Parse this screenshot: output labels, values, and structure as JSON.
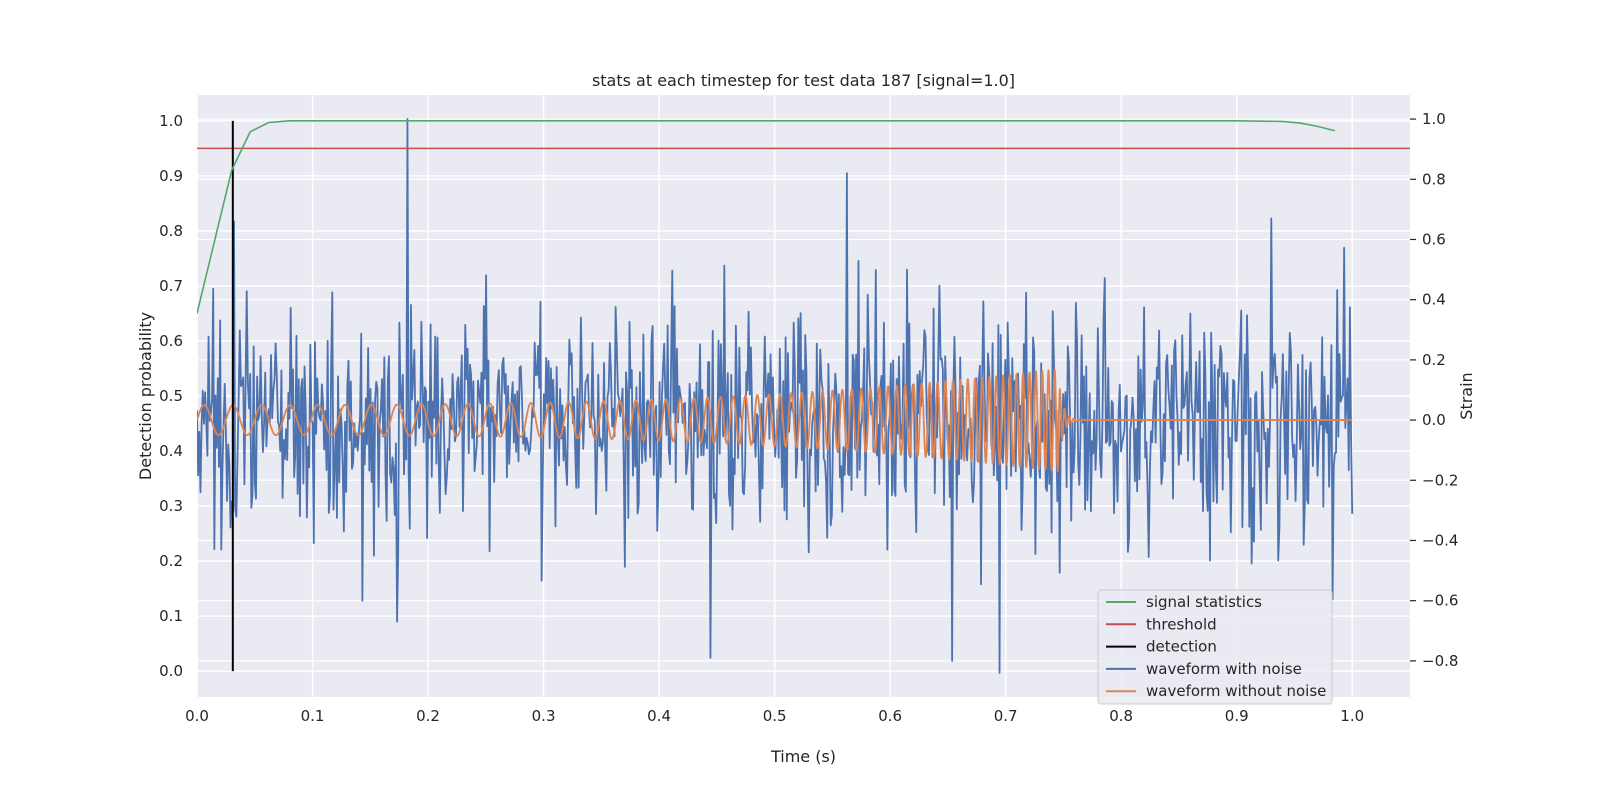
{
  "chart_data": {
    "type": "line",
    "title": "stats at each timestep for test data 187 [signal=1.0]",
    "xlabel": "Time (s)",
    "ylabel_left": "Detection probability",
    "ylabel_right": "Strain",
    "xlim": [
      0.0,
      1.05
    ],
    "ylim_left": [
      -0.047,
      1.047
    ],
    "ylim_right": [
      -0.92,
      1.08
    ],
    "x_ticks": [
      0.0,
      0.1,
      0.2,
      0.3,
      0.4,
      0.5,
      0.6,
      0.7,
      0.8,
      0.9,
      1.0
    ],
    "x_tick_labels": [
      "0.0",
      "0.1",
      "0.2",
      "0.3",
      "0.4",
      "0.5",
      "0.6",
      "0.7",
      "0.8",
      "0.9",
      "1.0"
    ],
    "y_ticks_left": [
      0.0,
      0.1,
      0.2,
      0.3,
      0.4,
      0.5,
      0.6,
      0.7,
      0.8,
      0.9,
      1.0
    ],
    "y_tick_labels_left": [
      "0.0",
      "0.1",
      "0.2",
      "0.3",
      "0.4",
      "0.5",
      "0.6",
      "0.7",
      "0.8",
      "0.9",
      "1.0"
    ],
    "y_ticks_right": [
      -0.8,
      -0.6,
      -0.4,
      -0.2,
      0.0,
      0.2,
      0.4,
      0.6,
      0.8,
      1.0
    ],
    "y_tick_labels_right": [
      "−0.8",
      "−0.6",
      "−0.4",
      "−0.2",
      "0.0",
      "0.2",
      "0.4",
      "0.6",
      "0.8",
      "1.0"
    ],
    "grid": true,
    "legend_position": "lower-right",
    "series": [
      {
        "name": "signal statistics",
        "axis": "left",
        "color": "#55a868",
        "x": [
          0.0,
          0.015,
          0.03,
          0.046,
          0.062,
          0.08,
          0.1,
          0.2,
          0.4,
          0.6,
          0.8,
          0.9,
          0.94,
          0.955,
          0.97,
          0.985
        ],
        "y": [
          0.65,
          0.78,
          0.91,
          0.98,
          0.997,
          1.0,
          1.0,
          1.0,
          1.0,
          1.0,
          1.0,
          1.0,
          0.999,
          0.996,
          0.99,
          0.982
        ]
      },
      {
        "name": "threshold",
        "axis": "left",
        "color": "#c44e52",
        "x": [
          0.0,
          1.05
        ],
        "y": [
          0.95,
          0.95
        ]
      },
      {
        "name": "detection",
        "axis": "left",
        "color": "#000000",
        "x": [
          0.031,
          0.031
        ],
        "y": [
          0.0,
          1.0
        ]
      },
      {
        "name": "waveform with noise",
        "axis": "right",
        "color": "#4c72b0",
        "description": "noisy strain, about 1000 samples spanning 0.0 to 1.0 s, amplitude roughly -0.84 to 1.0",
        "seed": 187,
        "samples": 1000,
        "t_start": 0.0,
        "t_end": 1.0,
        "noise_std": 0.22,
        "peaks": [
          {
            "t": 0.182,
            "v": 1.0
          },
          {
            "t": 0.563,
            "v": 0.82
          },
          {
            "t": 0.93,
            "v": 0.67
          },
          {
            "t": 0.0325,
            "v": 0.66
          },
          {
            "t": 0.695,
            "v": -0.84
          },
          {
            "t": 0.654,
            "v": -0.8
          },
          {
            "t": 0.444,
            "v": -0.79
          },
          {
            "t": 0.173,
            "v": -0.67
          }
        ]
      },
      {
        "name": "waveform without noise",
        "axis": "right",
        "color": "#dd8452",
        "description": "chirp from 0.0 to about 0.745 s with frequency rising from about 40 Hz to 190 Hz and amplitude from 0.05 to 0.17, ringdown then flat zero to 1.0 s",
        "t_start": 0.0,
        "t_merger": 0.745,
        "t_end": 1.0,
        "f_start": 40,
        "f_end": 190,
        "amp_start": 0.05,
        "amp_end": 0.17
      }
    ]
  }
}
